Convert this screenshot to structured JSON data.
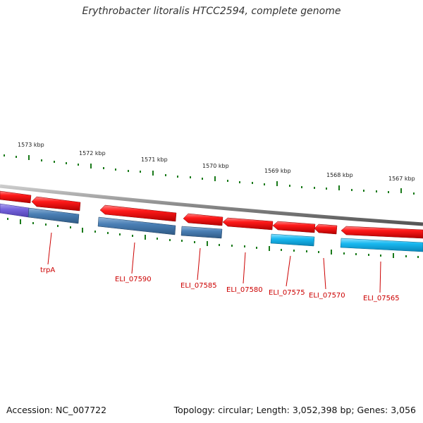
{
  "title": "Erythrobacter litoralis HTCC2594, complete genome",
  "footer": {
    "accession": "Accession: NC_007722",
    "stats": "Topology: circular; Length: 3,052,398 bp; Genes: 3,056"
  },
  "colors": {
    "forward_gene": "#ee1111",
    "reverse_gene_steel": "#4a7fb5",
    "reverse_gene_cyan": "#18b8f0",
    "reverse_gene_purple": "#7766dd",
    "label": "#cc0000",
    "tick": "#1a7a1a",
    "backbone": "#888888"
  },
  "scale": {
    "labels": [
      "1573 kbp",
      "1572 kbp",
      "1571 kbp",
      "1570 kbp",
      "1569 kbp",
      "1568 kbp",
      "1567 kbp"
    ]
  },
  "gene_labels": [
    "trpA",
    "ELI_07590",
    "ELI_07585",
    "ELI_07580",
    "ELI_07575",
    "ELI_07570",
    "ELI_07565"
  ]
}
